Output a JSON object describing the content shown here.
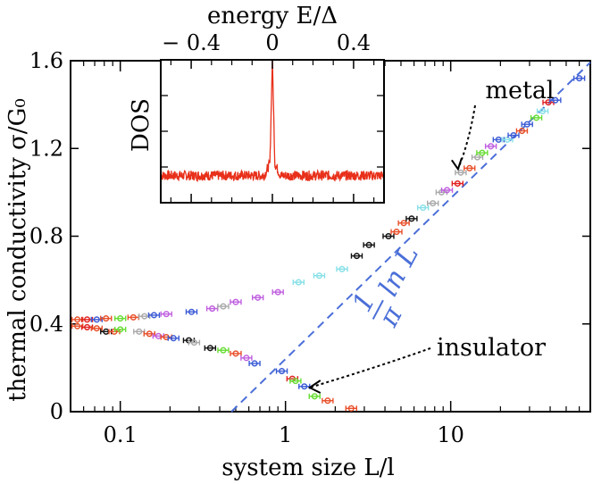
{
  "chart_data": {
    "type": "scatter",
    "title": "",
    "xlabel": "system size L/l",
    "ylabel": "thermal conductivity σ/G₀",
    "xscale": "log",
    "xlim": [
      0.05,
      70
    ],
    "ylim": [
      0,
      1.6
    ],
    "xticks": [
      {
        "value": 0.1,
        "label": "0.1"
      },
      {
        "value": 1,
        "label": "1"
      },
      {
        "value": 10,
        "label": "10"
      }
    ],
    "yticks": [
      {
        "value": 0,
        "label": "0"
      },
      {
        "value": 0.4,
        "label": "0.4"
      },
      {
        "value": 0.8,
        "label": "0.8"
      },
      {
        "value": 1.2,
        "label": "1.2"
      },
      {
        "value": 1.6,
        "label": "1.6"
      }
    ],
    "fit_line": {
      "label_num": "1",
      "label_den": "π",
      "label_tail": "ln L",
      "slope_per_ln": 0.3183,
      "intercept": 0.24,
      "color": "#4b6fd8"
    },
    "annotations": [
      {
        "text": "metal",
        "points_to": [
          10.8,
          1.09
        ]
      },
      {
        "text": "insulator",
        "points_to": [
          1.3,
          0.11
        ]
      }
    ],
    "series": [
      {
        "name": "metal",
        "points": [
          {
            "x": 0.055,
            "y": 0.42,
            "color": "#e8502a"
          },
          {
            "x": 0.063,
            "y": 0.42,
            "color": "#e02020"
          },
          {
            "x": 0.072,
            "y": 0.42,
            "color": "#3b5bd6"
          },
          {
            "x": 0.082,
            "y": 0.425,
            "color": "#e8502a"
          },
          {
            "x": 0.1,
            "y": 0.425,
            "color": "#66dd33"
          },
          {
            "x": 0.12,
            "y": 0.43,
            "color": "#e8502a"
          },
          {
            "x": 0.14,
            "y": 0.435,
            "color": "#aaaaaa"
          },
          {
            "x": 0.16,
            "y": 0.44,
            "color": "#3b5bd6"
          },
          {
            "x": 0.19,
            "y": 0.445,
            "color": "#c060e0"
          },
          {
            "x": 0.27,
            "y": 0.455,
            "color": "#3b5bd6"
          },
          {
            "x": 0.36,
            "y": 0.47,
            "color": "#c060e0"
          },
          {
            "x": 0.42,
            "y": 0.48,
            "color": "#aaaaaa"
          },
          {
            "x": 0.5,
            "y": 0.5,
            "color": "#c060e0"
          },
          {
            "x": 0.68,
            "y": 0.52,
            "color": "#c060e0"
          },
          {
            "x": 0.9,
            "y": 0.545,
            "color": "#c060e0"
          },
          {
            "x": 1.2,
            "y": 0.59,
            "color": "#88e0e8"
          },
          {
            "x": 1.6,
            "y": 0.62,
            "color": "#88e0e8"
          },
          {
            "x": 2.2,
            "y": 0.65,
            "color": "#88e0e8"
          },
          {
            "x": 2.7,
            "y": 0.71,
            "color": "#111111"
          },
          {
            "x": 3.2,
            "y": 0.76,
            "color": "#111111"
          },
          {
            "x": 4.2,
            "y": 0.8,
            "color": "#111111"
          },
          {
            "x": 4.7,
            "y": 0.82,
            "color": "#e8502a"
          },
          {
            "x": 5.2,
            "y": 0.86,
            "color": "#e8502a"
          },
          {
            "x": 5.8,
            "y": 0.88,
            "color": "#111111"
          },
          {
            "x": 6.8,
            "y": 0.93,
            "color": "#88e0e8"
          },
          {
            "x": 7.8,
            "y": 0.95,
            "color": "#aaaaaa"
          },
          {
            "x": 8.8,
            "y": 1.0,
            "color": "#aaaaaa"
          },
          {
            "x": 9.5,
            "y": 1.01,
            "color": "#c060e0"
          },
          {
            "x": 11.0,
            "y": 1.04,
            "color": "#e02020"
          },
          {
            "x": 11.5,
            "y": 1.09,
            "color": "#aaaaaa"
          },
          {
            "x": 13.0,
            "y": 1.11,
            "color": "#e8502a"
          },
          {
            "x": 14.5,
            "y": 1.16,
            "color": "#aaaaaa"
          },
          {
            "x": 15.5,
            "y": 1.18,
            "color": "#66dd33"
          },
          {
            "x": 17.5,
            "y": 1.21,
            "color": "#c060e0"
          },
          {
            "x": 19.5,
            "y": 1.24,
            "color": "#3b5bd6"
          },
          {
            "x": 22.0,
            "y": 1.24,
            "color": "#88e0e8"
          },
          {
            "x": 24.0,
            "y": 1.26,
            "color": "#3b5bd6"
          },
          {
            "x": 27.0,
            "y": 1.28,
            "color": "#e8502a"
          },
          {
            "x": 29.0,
            "y": 1.31,
            "color": "#3b5bd6"
          },
          {
            "x": 33.0,
            "y": 1.34,
            "color": "#66dd33"
          },
          {
            "x": 36.0,
            "y": 1.37,
            "color": "#88e0e8"
          },
          {
            "x": 39.0,
            "y": 1.41,
            "color": "#e02020"
          },
          {
            "x": 43.0,
            "y": 1.42,
            "color": "#3b5bd6"
          },
          {
            "x": 60.0,
            "y": 1.52,
            "color": "#3b5bd6"
          }
        ]
      },
      {
        "name": "insulator",
        "points": [
          {
            "x": 0.055,
            "y": 0.39,
            "color": "#e8502a"
          },
          {
            "x": 0.063,
            "y": 0.385,
            "color": "#e02020"
          },
          {
            "x": 0.072,
            "y": 0.38,
            "color": "#e8502a"
          },
          {
            "x": 0.082,
            "y": 0.365,
            "color": "#111111"
          },
          {
            "x": 0.092,
            "y": 0.365,
            "color": "#e8502a"
          },
          {
            "x": 0.1,
            "y": 0.375,
            "color": "#66dd33"
          },
          {
            "x": 0.13,
            "y": 0.365,
            "color": "#aaaaaa"
          },
          {
            "x": 0.15,
            "y": 0.355,
            "color": "#e8502a"
          },
          {
            "x": 0.17,
            "y": 0.345,
            "color": "#c060e0"
          },
          {
            "x": 0.19,
            "y": 0.34,
            "color": "#e8502a"
          },
          {
            "x": 0.21,
            "y": 0.335,
            "color": "#3b5bd6"
          },
          {
            "x": 0.26,
            "y": 0.325,
            "color": "#111111"
          },
          {
            "x": 0.28,
            "y": 0.315,
            "color": "#aaaaaa"
          },
          {
            "x": 0.35,
            "y": 0.29,
            "color": "#111111"
          },
          {
            "x": 0.42,
            "y": 0.28,
            "color": "#66dd33"
          },
          {
            "x": 0.5,
            "y": 0.265,
            "color": "#e8502a"
          },
          {
            "x": 0.58,
            "y": 0.245,
            "color": "#c060e0"
          },
          {
            "x": 0.65,
            "y": 0.22,
            "color": "#3b5bd6"
          },
          {
            "x": 0.95,
            "y": 0.185,
            "color": "#3b5bd6"
          },
          {
            "x": 1.1,
            "y": 0.15,
            "color": "#e02020"
          },
          {
            "x": 1.15,
            "y": 0.14,
            "color": "#66dd33"
          },
          {
            "x": 1.3,
            "y": 0.115,
            "color": "#3b5bd6"
          },
          {
            "x": 1.5,
            "y": 0.07,
            "color": "#66dd33"
          },
          {
            "x": 1.8,
            "y": 0.05,
            "color": "#e8502a"
          },
          {
            "x": 2.5,
            "y": 0.015,
            "color": "#e8502a"
          }
        ]
      }
    ],
    "inset": {
      "type": "line",
      "title": "energy E/Δ",
      "ylabel": "DOS",
      "xlim": [
        -0.55,
        0.55
      ],
      "xticks": [
        {
          "value": -0.4,
          "label": "− 0.4"
        },
        {
          "value": 0,
          "label": "0"
        },
        {
          "value": 0.4,
          "label": "0.4"
        }
      ],
      "color": "#e8301a",
      "baseline_level": 0.19,
      "peak": {
        "x": 0,
        "height": 1.0
      }
    }
  }
}
